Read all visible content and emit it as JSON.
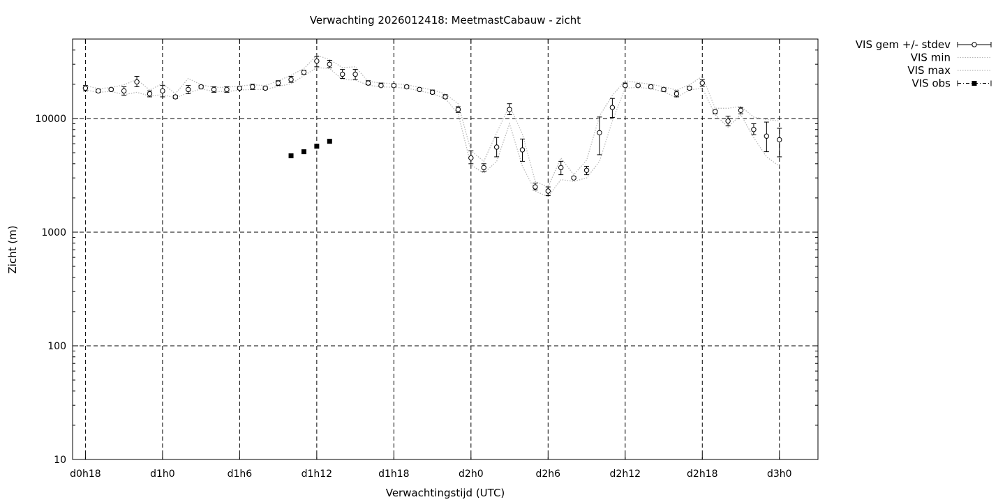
{
  "chart_data": {
    "type": "scatter",
    "title": "Verwachting 2026012418: MeetmastCabauw - zicht",
    "xlabel": "Verwachtingstijd (UTC)",
    "ylabel": "Zicht (m)",
    "yscale": "log",
    "ylim": [
      10,
      50000
    ],
    "xlim_hours": [
      -1,
      57
    ],
    "grid": true,
    "legend_position": "outside-top-right",
    "x_ticks": [
      {
        "label": "d0h18",
        "hours": 0
      },
      {
        "label": "d1h0",
        "hours": 6
      },
      {
        "label": "d1h6",
        "hours": 12
      },
      {
        "label": "d1h12",
        "hours": 18
      },
      {
        "label": "d1h18",
        "hours": 24
      },
      {
        "label": "d2h0",
        "hours": 30
      },
      {
        "label": "d2h6",
        "hours": 36
      },
      {
        "label": "d2h12",
        "hours": 42
      },
      {
        "label": "d2h18",
        "hours": 48
      },
      {
        "label": "d3h0",
        "hours": 54
      }
    ],
    "y_ticks": [
      {
        "label": "10",
        "value": 10
      },
      {
        "label": "100",
        "value": 100
      },
      {
        "label": "1000",
        "value": 1000
      },
      {
        "label": "10000",
        "value": 10000
      }
    ],
    "x_hours": [
      0,
      1,
      2,
      3,
      4,
      5,
      6,
      7,
      8,
      9,
      10,
      11,
      12,
      13,
      14,
      15,
      16,
      17,
      18,
      19,
      20,
      21,
      22,
      23,
      24,
      25,
      26,
      27,
      28,
      29,
      30,
      31,
      32,
      33,
      34,
      35,
      36,
      37,
      38,
      39,
      40,
      41,
      42,
      43,
      44,
      45,
      46,
      47,
      48,
      49,
      50,
      51,
      52,
      53,
      54
    ],
    "series": [
      {
        "name": "VIS gem +/- stdev",
        "style": "points-errorbars",
        "values": [
          18500,
          17500,
          18000,
          17500,
          21000,
          16500,
          17500,
          15500,
          18000,
          19000,
          18000,
          18000,
          18500,
          19000,
          18500,
          20500,
          22000,
          25500,
          32000,
          30000,
          24500,
          24500,
          20500,
          19500,
          19500,
          19000,
          18000,
          17000,
          15500,
          12000,
          4500,
          3700,
          5600,
          12000,
          5300,
          2500,
          2300,
          3700,
          3000,
          3500,
          7500,
          12500,
          19500,
          19500,
          19000,
          18000,
          16500,
          18500,
          20500,
          11500,
          9500,
          11800,
          8000,
          7000,
          6500
        ],
        "stdev_low": [
          17500,
          17000,
          17500,
          16000,
          19000,
          15500,
          15500,
          15000,
          16500,
          18500,
          17000,
          17000,
          18000,
          18000,
          18000,
          19500,
          20800,
          24500,
          28500,
          28000,
          22500,
          22000,
          19800,
          19000,
          19000,
          18500,
          17500,
          16500,
          15000,
          11300,
          4000,
          3400,
          4600,
          10800,
          4200,
          2350,
          2100,
          3200,
          2950,
          3200,
          4800,
          10200,
          19000,
          19000,
          18500,
          17300,
          15500,
          18000,
          19200,
          11000,
          8600,
          11000,
          7200,
          5100,
          4600
        ],
        "stdev_high": [
          19500,
          18000,
          18500,
          19000,
          23500,
          17500,
          19500,
          16000,
          19500,
          19500,
          19000,
          19000,
          19000,
          20000,
          19000,
          21500,
          23500,
          26500,
          35000,
          32500,
          27000,
          27000,
          21500,
          20500,
          20000,
          19500,
          18500,
          17800,
          16200,
          12700,
          5200,
          4000,
          6800,
          13500,
          6600,
          2700,
          2500,
          4200,
          3080,
          3800,
          10300,
          15000,
          20500,
          20000,
          19700,
          18600,
          17500,
          19100,
          22000,
          11800,
          10500,
          12500,
          9000,
          9300,
          8200
        ]
      },
      {
        "name": "VIS min",
        "style": "dotted-line",
        "values": [
          17800,
          17000,
          17300,
          16200,
          17000,
          15800,
          16200,
          15200,
          16800,
          18200,
          17300,
          17200,
          17800,
          18000,
          18000,
          19200,
          20200,
          23800,
          28000,
          27500,
          22000,
          21800,
          19600,
          19000,
          18800,
          18500,
          17500,
          16500,
          15000,
          11000,
          3900,
          3300,
          4200,
          9000,
          3800,
          2300,
          2050,
          2900,
          2800,
          3000,
          4200,
          9500,
          18500,
          18800,
          18300,
          17200,
          15300,
          17800,
          18500,
          10800,
          8400,
          10800,
          6800,
          4600,
          3800
        ]
      },
      {
        "name": "VIS max",
        "style": "dotted-line",
        "values": [
          19500,
          18300,
          18700,
          19800,
          22000,
          17800,
          20300,
          16500,
          22500,
          19800,
          18800,
          18800,
          19300,
          19800,
          19500,
          21500,
          24000,
          27500,
          36000,
          33000,
          28000,
          28500,
          21200,
          20500,
          20300,
          19800,
          18800,
          17800,
          16500,
          13500,
          5200,
          4200,
          7500,
          13000,
          7300,
          2800,
          2500,
          4500,
          3200,
          4300,
          10500,
          16000,
          21500,
          20700,
          20000,
          19000,
          17800,
          19800,
          23500,
          12300,
          12300,
          12800,
          10300,
          9800,
          9500
        ]
      },
      {
        "name": "VIS obs",
        "style": "filled-squares",
        "x_hours": [
          16,
          17,
          18,
          19
        ],
        "values": [
          4700,
          5100,
          5700,
          6300
        ]
      }
    ]
  }
}
